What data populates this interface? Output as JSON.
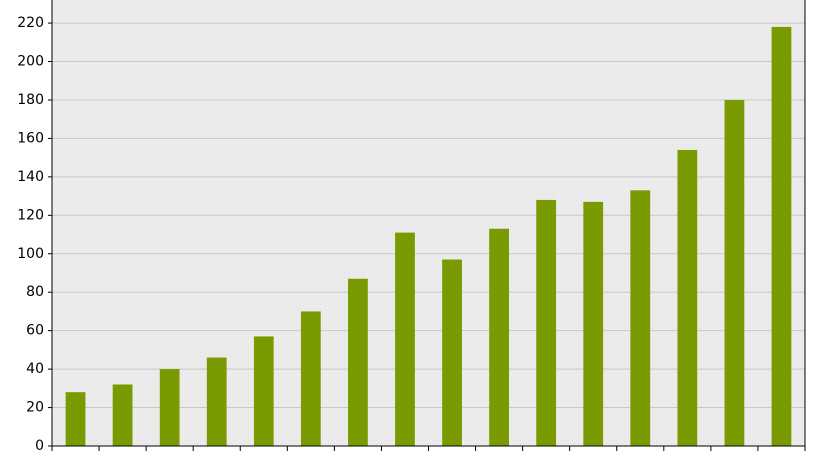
{
  "chart_data": {
    "type": "bar",
    "categories": [
      null,
      null,
      null,
      null,
      null,
      null,
      null,
      null,
      null,
      null,
      null,
      null,
      null,
      null,
      null,
      null
    ],
    "values": [
      28,
      32,
      40,
      46,
      57,
      70,
      87,
      111,
      97,
      113,
      128,
      127,
      133,
      154,
      180,
      218
    ],
    "color": "#7a9a01",
    "ylim": [
      0,
      232
    ],
    "yticks": [
      0,
      20,
      40,
      60,
      80,
      100,
      120,
      140,
      160,
      180,
      200,
      220
    ],
    "grid": true
  }
}
